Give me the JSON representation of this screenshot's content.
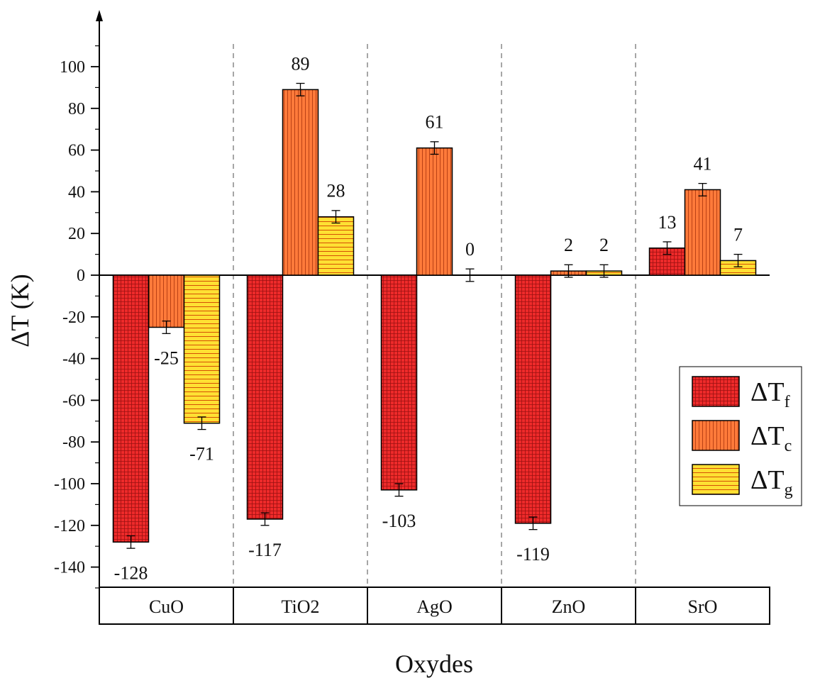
{
  "chart_data": {
    "type": "bar",
    "xlabel": "Oxydes",
    "ylabel": "ΔT (K)",
    "ylim": [
      -150,
      120
    ],
    "yticks": [
      100,
      80,
      60,
      40,
      20,
      0,
      -20,
      -40,
      -60,
      -80,
      -100,
      -120,
      -140
    ],
    "categories": [
      "CuO",
      "TiO2",
      "AgO",
      "ZnO",
      "SrO"
    ],
    "series": [
      {
        "name": "ΔTf",
        "legend_base": "ΔT",
        "legend_sub": "f",
        "color": "#ee2a2a",
        "pattern": "grid",
        "values": [
          -128,
          -117,
          -103,
          -119,
          13
        ],
        "errors": [
          3,
          3,
          3,
          3,
          3
        ],
        "labels": [
          "-128",
          "-117",
          "-103",
          "-119",
          "13"
        ]
      },
      {
        "name": "ΔTc",
        "legend_base": "ΔT",
        "legend_sub": "c",
        "color": "#ff7a3a",
        "pattern": "vertical",
        "values": [
          -25,
          89,
          61,
          2,
          41
        ],
        "errors": [
          3,
          3,
          3,
          3,
          3
        ],
        "labels": [
          "-25",
          "89",
          "61",
          "2",
          "41"
        ]
      },
      {
        "name": "ΔTg",
        "legend_base": "ΔT",
        "legend_sub": "g",
        "color": "#ffe033",
        "pattern": "horizontal",
        "values": [
          -71,
          28,
          0,
          2,
          7
        ],
        "errors": [
          3,
          3,
          3,
          3,
          3
        ],
        "labels": [
          "-71",
          "28",
          "0",
          "2",
          "7"
        ]
      }
    ],
    "legend_position": "right",
    "category_separators": "dashed"
  }
}
